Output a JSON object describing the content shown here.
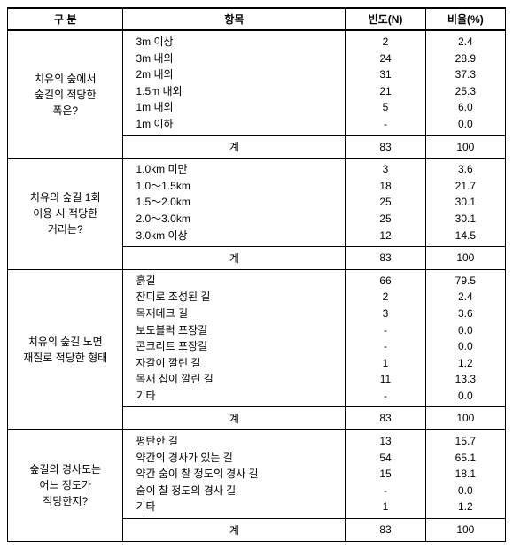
{
  "header": {
    "c1": "구  분",
    "c2": "항목",
    "c3": "빈도(N)",
    "c4": "비율(%)"
  },
  "subtotal_label": "계",
  "groups": [
    {
      "category": "치유의 숲에서\n숲길의 적당한\n폭은?",
      "rows": [
        {
          "item": "3m 이상",
          "n": "2",
          "pct": "2.4"
        },
        {
          "item": "3m 내외",
          "n": "24",
          "pct": "28.9"
        },
        {
          "item": "2m 내외",
          "n": "31",
          "pct": "37.3"
        },
        {
          "item": "1.5m 내외",
          "n": "21",
          "pct": "25.3"
        },
        {
          "item": "1m 내외",
          "n": "5",
          "pct": "6.0"
        },
        {
          "item": "1m 이하",
          "n": "-",
          "pct": "0.0"
        }
      ],
      "subtotal": {
        "n": "83",
        "pct": "100"
      }
    },
    {
      "category": "치유의 숲길 1회\n이용 시 적당한\n거리는?",
      "rows": [
        {
          "item": "1.0km 미만",
          "n": "3",
          "pct": "3.6"
        },
        {
          "item": "1.0～1.5km",
          "n": "18",
          "pct": "21.7"
        },
        {
          "item": "1.5～2.0km",
          "n": "25",
          "pct": "30.1"
        },
        {
          "item": "2.0～3.0km",
          "n": "25",
          "pct": "30.1"
        },
        {
          "item": "3.0km 이상",
          "n": "12",
          "pct": "14.5"
        }
      ],
      "subtotal": {
        "n": "83",
        "pct": "100"
      }
    },
    {
      "category": "치유의 숲길 노면\n재질로 적당한 형태",
      "rows": [
        {
          "item": "흙길",
          "n": "66",
          "pct": "79.5"
        },
        {
          "item": "잔디로 조성된 길",
          "n": "2",
          "pct": "2.4"
        },
        {
          "item": "목재데크 길",
          "n": "3",
          "pct": "3.6"
        },
        {
          "item": "보도블럭 포장길",
          "n": "-",
          "pct": "0.0"
        },
        {
          "item": "콘크리트 포장길",
          "n": "-",
          "pct": "0.0"
        },
        {
          "item": "자갈이 깔린 길",
          "n": "1",
          "pct": "1.2"
        },
        {
          "item": "목재 칩이 깔린 길",
          "n": "11",
          "pct": "13.3"
        },
        {
          "item": "기타",
          "n": "-",
          "pct": "0.0"
        }
      ],
      "subtotal": {
        "n": "83",
        "pct": "100"
      }
    },
    {
      "category": "숲길의 경사도는\n어느 정도가\n적당한지?",
      "rows": [
        {
          "item": "평탄한 길",
          "n": "13",
          "pct": "15.7"
        },
        {
          "item": "약간의 경사가 있는 길",
          "n": "54",
          "pct": "65.1"
        },
        {
          "item": "약간 숨이 찰 정도의 경사 길",
          "n": "15",
          "pct": "18.1"
        },
        {
          "item": "숨이 찰 정도의 경사 길",
          "n": "-",
          "pct": "0.0"
        },
        {
          "item": "기타",
          "n": "1",
          "pct": "1.2"
        }
      ],
      "subtotal": {
        "n": "83",
        "pct": "100"
      }
    }
  ]
}
